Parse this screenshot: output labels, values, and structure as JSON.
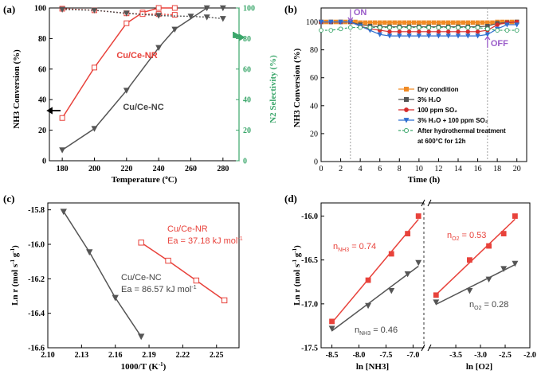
{
  "chart_data": [
    {
      "id": "a",
      "panel_label": "(a)",
      "type": "line",
      "xlabel_main": "Temperature (",
      "xlabel_sup": "o",
      "xlabel_tail": "C)",
      "ylabel_left": "NH3 Conversion  (%)",
      "ylabel_right": "N2 Selectivity  (%)",
      "xlim": [
        172,
        290
      ],
      "ylim": [
        0,
        100
      ],
      "ylim_right": [
        0,
        100
      ],
      "xticks": [
        180,
        200,
        220,
        240,
        260,
        280
      ],
      "yticks": [
        0,
        20,
        40,
        60,
        80,
        100
      ],
      "yticks_right": [
        0,
        20,
        40,
        60,
        80,
        100
      ],
      "right_axis_color": "#3aa66a",
      "series": [
        {
          "name": "Cu/Ce-NR",
          "label": "Cu/Ce-NR",
          "color": "#e8423b",
          "marker": "square-open",
          "axis": "left",
          "x": [
            180,
            200,
            220,
            230,
            240,
            250
          ],
          "y": [
            28,
            61,
            90,
            97,
            100,
            100
          ]
        },
        {
          "name": "Cu/Ce-NC",
          "label": "Cu/Ce-NC",
          "color": "#555555",
          "marker": "triangle-down",
          "axis": "left",
          "x": [
            180,
            200,
            220,
            240,
            250,
            270,
            280
          ],
          "y": [
            7,
            21,
            46,
            74,
            86,
            100,
            100
          ]
        },
        {
          "name": "Cu/Ce-NR selectivity",
          "color": "#e8423b",
          "marker": "square-open",
          "axis": "right",
          "dashed": true,
          "x": [
            180,
            200,
            220,
            230,
            240,
            250
          ],
          "y": [
            99.5,
            98.5,
            96.5,
            96,
            96,
            95.5
          ]
        },
        {
          "name": "Cu/Ce-NC selectivity",
          "color": "#555555",
          "marker": "triangle-down",
          "axis": "right",
          "dashed": true,
          "x": [
            180,
            200,
            220,
            240,
            260,
            270,
            280
          ],
          "y": [
            99,
            98.5,
            96.5,
            95,
            94.5,
            94,
            93
          ]
        }
      ]
    },
    {
      "id": "b",
      "panel_label": "(b)",
      "type": "line",
      "xlabel": "Time (h)",
      "ylabel": "NH3 Conversion  (%)",
      "xlim": [
        0,
        21
      ],
      "ylim": [
        0,
        110
      ],
      "xticks": [
        0,
        2,
        4,
        6,
        8,
        10,
        12,
        14,
        16,
        18,
        20
      ],
      "yticks": [
        0,
        20,
        40,
        60,
        80,
        100
      ],
      "annotations": [
        "ON",
        "OFF"
      ],
      "annotation_color": "#9a5cc9",
      "series": [
        {
          "name": "Dry condition",
          "color": "#f08a24",
          "marker": "square",
          "x": [
            0,
            0.5,
            1,
            1.5,
            2,
            2.5,
            3,
            3.5,
            4,
            4.5,
            5,
            5.5,
            6,
            6.5,
            7,
            7.5,
            8,
            8.5,
            9,
            9.5,
            10,
            10.5,
            11,
            11.5,
            12,
            12.5,
            13,
            13.5,
            14,
            14.5,
            15,
            15.5,
            16,
            16.5,
            17,
            17.5,
            18,
            18.5,
            19,
            19.5,
            20
          ],
          "y": [
            100,
            100,
            100,
            100,
            100,
            100,
            100,
            100,
            99.5,
            99.5,
            99.5,
            99.5,
            99.5,
            99.5,
            99.5,
            99.5,
            99.5,
            99.5,
            99.5,
            99.5,
            99.5,
            99.5,
            99.5,
            99.5,
            99.5,
            99.5,
            99.5,
            99.5,
            99.5,
            99.5,
            99.5,
            99.5,
            99.5,
            99.5,
            99.5,
            99.5,
            100,
            100,
            100,
            100,
            100
          ]
        },
        {
          "name": "3% H2O",
          "color": "#555555",
          "marker": "square",
          "x": [
            0,
            1,
            2,
            3,
            4,
            5,
            6,
            7,
            8,
            9,
            10,
            11,
            12,
            13,
            14,
            15,
            16,
            17,
            18,
            19,
            20
          ],
          "y": [
            100,
            100,
            100,
            100,
            98,
            97,
            96.5,
            96.5,
            96.5,
            96.5,
            96.5,
            96.5,
            96.5,
            96.5,
            96.5,
            96.5,
            96.5,
            97,
            99,
            99.5,
            100
          ]
        },
        {
          "name": "100 ppm SO2",
          "color": "#d62c2c",
          "marker": "circle",
          "x": [
            0,
            1,
            2,
            3,
            4,
            5,
            6,
            7,
            8,
            9,
            10,
            11,
            12,
            13,
            14,
            15,
            16,
            17,
            18,
            19,
            20
          ],
          "y": [
            100,
            100,
            100,
            100,
            97,
            95,
            94,
            93,
            93,
            93,
            93,
            93,
            93,
            93,
            93,
            93,
            93,
            94,
            98,
            99.5,
            100
          ]
        },
        {
          "name": "3% H2O + 100 ppm SO2",
          "color": "#2f6fd0",
          "marker": "triangle-down",
          "x": [
            0,
            1,
            2,
            3,
            4,
            5,
            6,
            7,
            8,
            9,
            10,
            11,
            12,
            13,
            14,
            15,
            16,
            17,
            18,
            19,
            20
          ],
          "y": [
            100,
            100,
            100,
            100,
            97,
            94,
            91,
            90,
            90,
            90,
            90,
            90,
            90,
            90,
            90,
            90,
            90,
            91,
            95,
            98,
            98
          ]
        },
        {
          "name": "After hydrothermal treatment at 600°C for 12h",
          "color": "#3aa66a",
          "marker": "circle-open",
          "dashed": true,
          "x": [
            0,
            1,
            2,
            3,
            4,
            5,
            6,
            7,
            8,
            9,
            10,
            11,
            12,
            13,
            14,
            15,
            16,
            17,
            18,
            19,
            20
          ],
          "y": [
            94,
            94,
            95,
            96,
            96,
            96,
            96,
            96,
            96,
            96,
            96,
            96,
            96,
            96,
            96,
            96,
            96,
            95,
            94,
            94,
            94
          ]
        }
      ],
      "legend": [
        "Dry condition",
        "3% H₂O",
        "100 ppm SO₂",
        "3% H₂O + 100 ppm SO₂",
        "After hydrothermal treatment",
        "at 600°C for 12h"
      ]
    },
    {
      "id": "c",
      "panel_label": "(c)",
      "type": "line",
      "xlabel": "1000/T (K-1)",
      "ylabel": "Ln r (mol s-1 g-1)",
      "xlim": [
        2.1,
        2.27
      ],
      "ylim": [
        -16.6,
        -15.76
      ],
      "xticks": [
        2.1,
        2.13,
        2.16,
        2.19,
        2.22,
        2.25
      ],
      "xtick_labels": [
        "2.10",
        "2.13",
        "2.16",
        "2.19",
        "2.22",
        "2.25"
      ],
      "yticks": [
        -16.6,
        -16.4,
        -16.2,
        -16.0,
        -15.8
      ],
      "ytick_labels": [
        "-16.6",
        "-16.4",
        "-16.2",
        "-16.0",
        "-15.8"
      ],
      "series": [
        {
          "name": "Cu/Ce-NR",
          "color": "#e8423b",
          "marker": "square-open",
          "x": [
            2.183,
            2.207,
            2.232,
            2.257
          ],
          "y": [
            -15.99,
            -16.095,
            -16.21,
            -16.325
          ],
          "label": "Cu/Ce-NR",
          "ea": "Ea = 37.18 kJ mol"
        },
        {
          "name": "Cu/Ce-NC",
          "color": "#555555",
          "marker": "triangle-down",
          "x": [
            2.114,
            2.137,
            2.16,
            2.183
          ],
          "y": [
            -15.81,
            -16.045,
            -16.31,
            -16.535
          ],
          "label": "Cu/Ce-NC",
          "ea": "Ea = 86.57 kJ mol"
        }
      ]
    },
    {
      "id": "d",
      "panel_label": "(d)",
      "type": "scatter",
      "ylabel": "Ln r (mol s-1 g-1)",
      "ylim": [
        -17.5,
        -15.85
      ],
      "yticks": [
        -17.5,
        -17.0,
        -16.5,
        -16.0
      ],
      "ytick_labels": [
        "-17.5",
        "-17.0",
        "-16.5",
        "-16.0"
      ],
      "left": {
        "xlabel": "ln [NH3]",
        "xlim": [
          -8.7,
          -6.8
        ],
        "xticks": [
          -8.5,
          -8.0,
          -7.5,
          -7.0
        ],
        "xtick_labels": [
          "-8.5",
          "-8.0",
          "-7.5",
          "-7.0"
        ],
        "series": [
          {
            "name": "Red",
            "color": "#e8423b",
            "marker": "square",
            "x": [
              -8.5,
              -7.83,
              -7.4,
              -7.1,
              -6.9
            ],
            "y": [
              -17.2,
              -16.73,
              -16.43,
              -16.2,
              -16.0
            ]
          },
          {
            "name": "Gray",
            "color": "#555555",
            "marker": "triangle-down",
            "x": [
              -8.5,
              -7.83,
              -7.4,
              -7.1,
              -6.9
            ],
            "y": [
              -17.28,
              -17.02,
              -16.85,
              -16.66,
              -16.53
            ]
          }
        ],
        "order_red_prefix": "n",
        "order_red_sub": "NH3",
        "order_red_value": " = 0.74",
        "order_gray_prefix": "n",
        "order_gray_sub": "NH3",
        "order_gray_value": " = 0.46"
      },
      "right": {
        "xlabel": "ln [O2]",
        "xlim": [
          -4.05,
          -2.0
        ],
        "xticks": [
          -3.5,
          -3.0,
          -2.5,
          -2.0
        ],
        "xtick_labels": [
          "-3.5",
          "-3.0",
          "-2.5",
          "-2.0"
        ],
        "series": [
          {
            "name": "Red",
            "color": "#e8423b",
            "marker": "square",
            "x": [
              -3.9,
              -3.22,
              -2.83,
              -2.53,
              -2.3
            ],
            "y": [
              -16.9,
              -16.5,
              -16.34,
              -16.2,
              -16.0
            ]
          },
          {
            "name": "Gray",
            "color": "#555555",
            "marker": "triangle-down",
            "x": [
              -3.9,
              -3.22,
              -2.83,
              -2.53,
              -2.3
            ],
            "y": [
              -16.98,
              -16.85,
              -16.72,
              -16.6,
              -16.54
            ]
          }
        ],
        "order_red_prefix": "n",
        "order_red_sub": "O2",
        "order_red_value": " = 0.53",
        "order_gray_prefix": "n",
        "order_gray_sub": "O2",
        "order_gray_value": " = 0.28"
      }
    }
  ]
}
